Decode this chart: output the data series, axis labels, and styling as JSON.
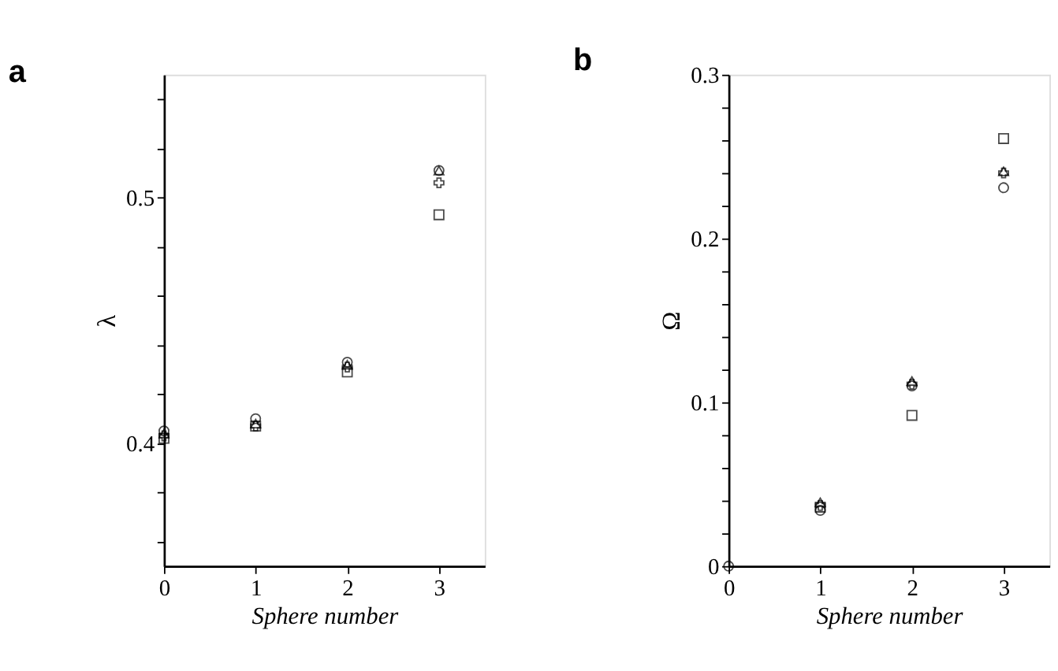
{
  "chart_data": [
    {
      "type": "scatter",
      "title": "a",
      "xlabel": "Sphere number",
      "ylabel": "λ",
      "xlim": [
        0,
        3.5
      ],
      "xticks": [
        0,
        1,
        2,
        3
      ],
      "ylim": [
        0.35,
        0.55
      ],
      "yticks": [
        {
          "value": 0.36,
          "label": null
        },
        {
          "value": 0.38,
          "label": null
        },
        0.4,
        {
          "value": 0.42,
          "label": null
        },
        {
          "value": 0.44,
          "label": null
        },
        {
          "value": 0.46,
          "label": null
        },
        {
          "value": 0.48,
          "label": null
        },
        0.5,
        {
          "value": 0.52,
          "label": null
        },
        {
          "value": 0.54,
          "label": null
        }
      ],
      "x": [
        0,
        1,
        2,
        3
      ],
      "grid": false,
      "series": [
        {
          "color": "#000000",
          "marker": "circle",
          "values": [
            0.405,
            0.41,
            0.433,
            0.511
          ]
        },
        {
          "color": "#000000",
          "marker": "triangle",
          "values": [
            0.404,
            0.408,
            0.432,
            0.511
          ]
        },
        {
          "color": "#000000",
          "marker": "cross",
          "values": [
            0.403,
            0.407,
            0.431,
            0.506
          ]
        },
        {
          "color": "#000000",
          "marker": "square",
          "values": [
            0.402,
            0.407,
            0.429,
            0.493
          ]
        }
      ]
    },
    {
      "type": "scatter",
      "title": "b",
      "xlabel": "Sphere number",
      "ylabel": "Ω",
      "xlim": [
        0,
        3.5
      ],
      "xticks": [
        0,
        1,
        2,
        3
      ],
      "ylim": [
        0,
        0.3
      ],
      "yticks": [
        0,
        {
          "value": 0.02,
          "label": null
        },
        {
          "value": 0.04,
          "label": null
        },
        {
          "value": 0.06,
          "label": null
        },
        {
          "value": 0.08,
          "label": null
        },
        0.1,
        {
          "value": 0.12,
          "label": null
        },
        {
          "value": 0.14,
          "label": null
        },
        {
          "value": 0.16,
          "label": null
        },
        {
          "value": 0.18,
          "label": null
        },
        0.2,
        {
          "value": 0.22,
          "label": null
        },
        {
          "value": 0.24,
          "label": null
        },
        {
          "value": 0.26,
          "label": null
        },
        {
          "value": 0.28,
          "label": null
        },
        0.3
      ],
      "x": [
        0,
        1,
        2,
        3
      ],
      "grid": false,
      "series": [
        {
          "color": "#000000",
          "marker": "circle",
          "values": [
            0,
            0.034,
            0.11,
            0.231
          ]
        },
        {
          "color": "#000000",
          "marker": "triangle",
          "values": [
            null,
            0.039,
            0.113,
            0.241
          ]
        },
        {
          "color": "#000000",
          "marker": "cross",
          "values": [
            null,
            0.037,
            0.111,
            0.24
          ]
        },
        {
          "color": "#000000",
          "marker": "square",
          "values": [
            null,
            0.036,
            0.092,
            0.261
          ]
        }
      ]
    }
  ]
}
